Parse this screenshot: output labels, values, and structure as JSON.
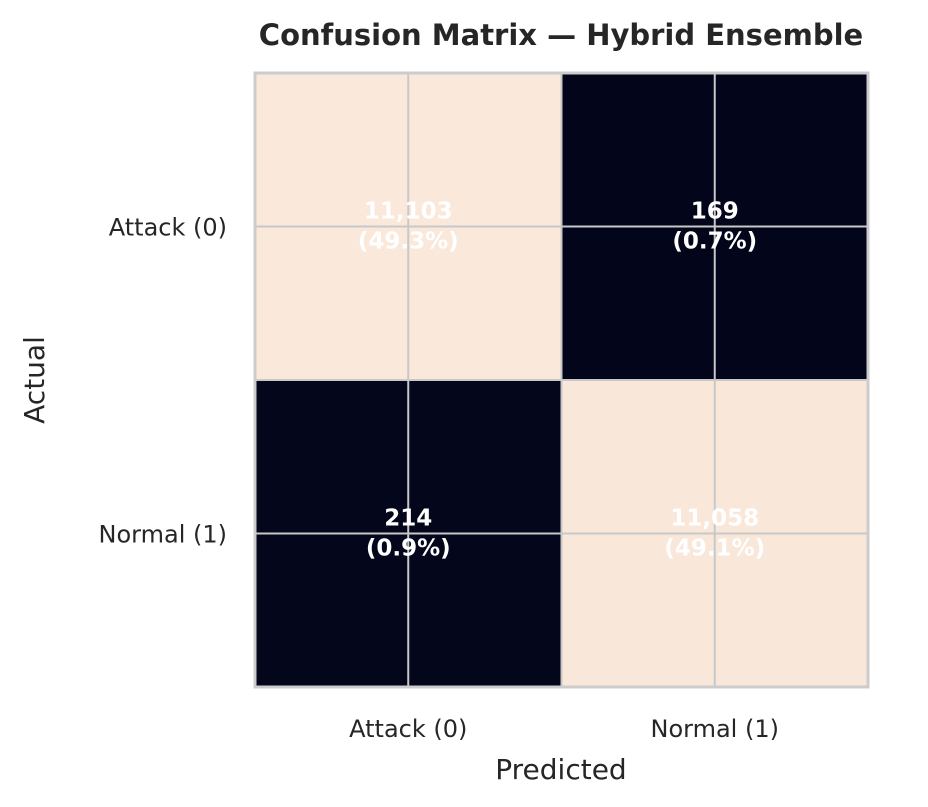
{
  "chart_data": {
    "type": "heatmap",
    "title": "Confusion Matrix — Hybrid Ensemble",
    "xlabel": "Predicted",
    "ylabel": "Actual",
    "x_categories": [
      "Attack (0)",
      "Normal (1)"
    ],
    "y_categories": [
      "Attack (0)",
      "Normal (1)"
    ],
    "values": [
      [
        11103,
        169
      ],
      [
        214,
        11058
      ]
    ],
    "cell_labels": [
      [
        {
          "count": "11,103",
          "pct": "(49.3%)"
        },
        {
          "count": "169",
          "pct": "(0.7%)"
        }
      ],
      [
        {
          "count": "214",
          "pct": "(0.9%)"
        },
        {
          "count": "11,058",
          "pct": "(49.1%)"
        }
      ]
    ],
    "colors": {
      "high": "#fae8db",
      "low": "#03051a",
      "cell_text": "#ffffff",
      "grid": "#c8c8c8",
      "frame": "#cccccc"
    },
    "grid": true
  }
}
